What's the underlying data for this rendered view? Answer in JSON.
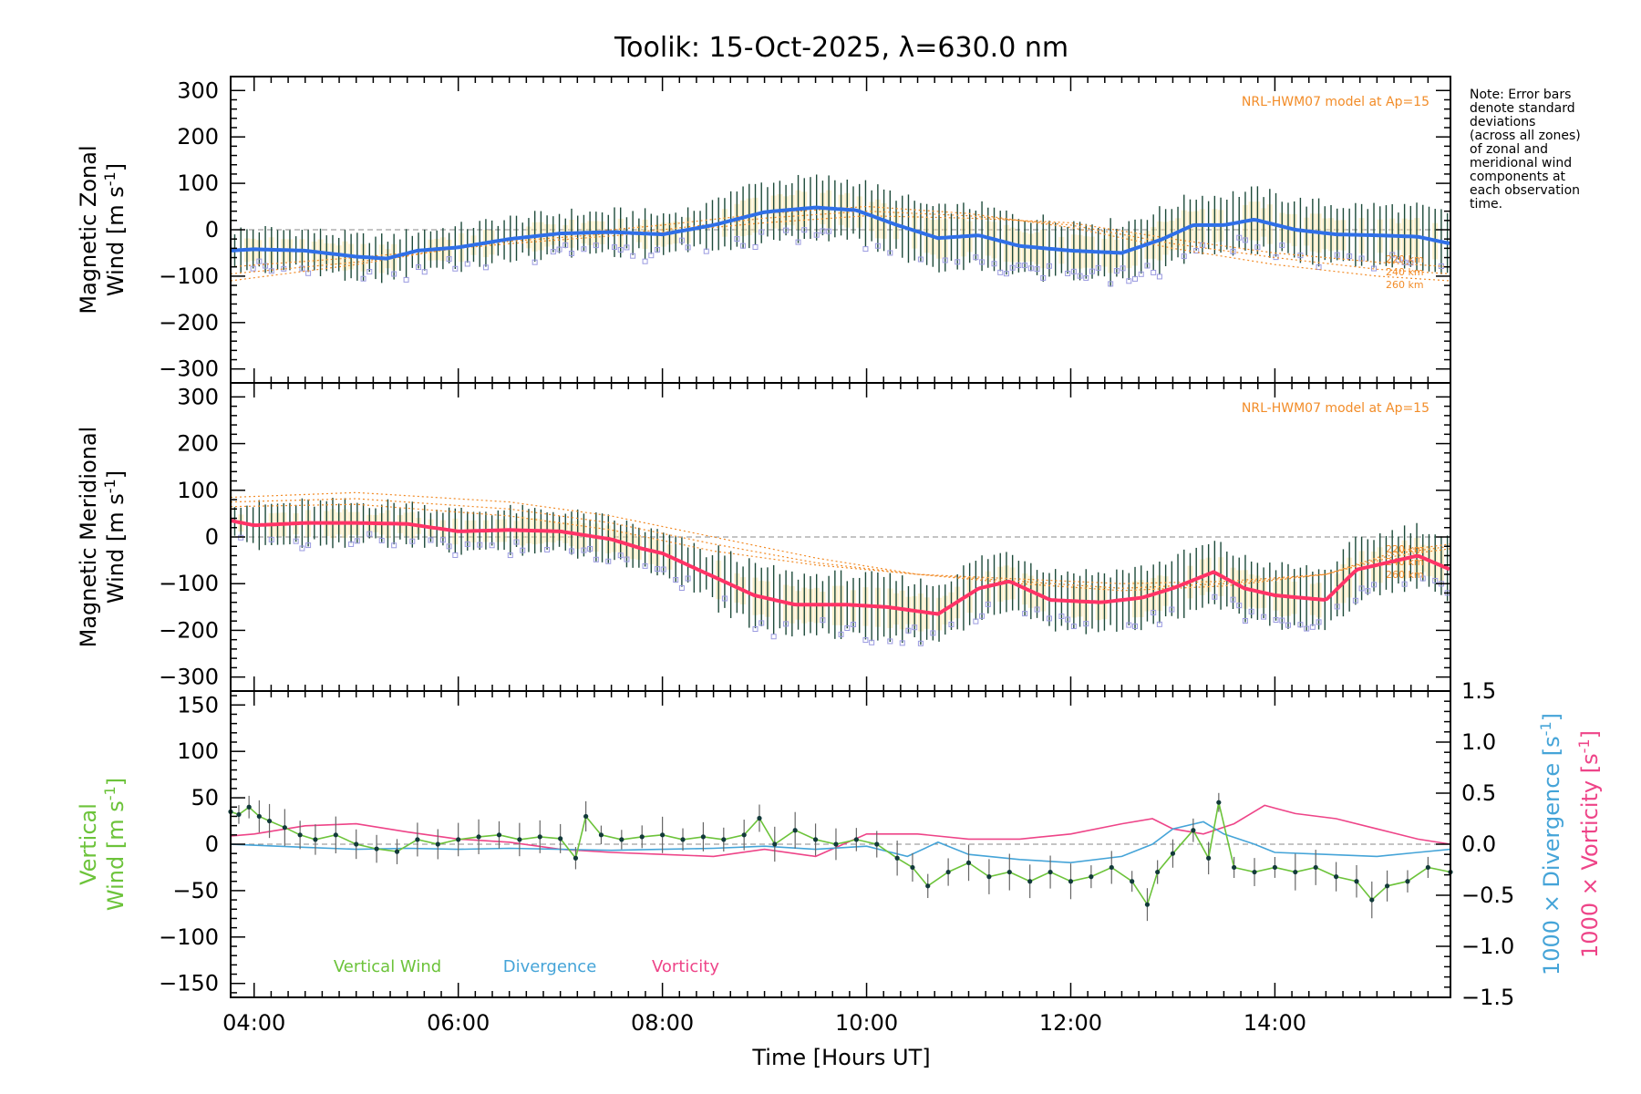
{
  "title": "Toolik: 15-Oct-2025, λ=630.0 nm",
  "note_lines": [
    "Note: Error bars",
    "denote standard",
    "deviations",
    "(across all zones)",
    "of zonal and",
    "meridional wind",
    "components at",
    "each observation",
    "time."
  ],
  "colors": {
    "zonal_line": "#2f6fe8",
    "meridional_line": "#ff3366",
    "model": "#f28c28",
    "vertical": "#6cc33a",
    "divergence": "#45a4d8",
    "vorticity": "#ee4488",
    "error_bar": "#1d4a3a",
    "zone_marker": "#9a9ae0",
    "zone_fill": "#fde5a8"
  },
  "chart_data": [
    {
      "type": "line",
      "name": "zonal",
      "ylabel_line1": "Magnetic Zonal",
      "ylabel_line2": "Wind [m s",
      "ylabel_sup": "-1",
      "ylabel_end": "]",
      "ylim": [
        -330,
        330
      ],
      "yticks": [
        300,
        200,
        100,
        0,
        -100,
        -200,
        -300
      ],
      "model_label": "NRL-HWM07 model at Ap=15",
      "km_labels": [
        "220 km",
        "240 km",
        "260 km"
      ],
      "x": [
        3.77,
        4.0,
        4.5,
        5.0,
        5.3,
        5.6,
        6.0,
        6.5,
        7.0,
        7.5,
        8.0,
        8.5,
        9.0,
        9.5,
        9.9,
        10.3,
        10.7,
        11.1,
        11.5,
        12.0,
        12.5,
        12.9,
        13.2,
        13.5,
        13.8,
        14.2,
        14.6,
        15.0,
        15.4,
        15.72
      ],
      "values": [
        -45,
        -42,
        -45,
        -58,
        -62,
        -45,
        -38,
        -20,
        -8,
        -5,
        -10,
        10,
        38,
        48,
        42,
        10,
        -18,
        -12,
        -35,
        -45,
        -50,
        -20,
        10,
        10,
        22,
        0,
        -10,
        -12,
        -15,
        -30
      ],
      "model_series": [
        {
          "name": "220 km",
          "x": [
            3.77,
            5.0,
            6.5,
            8.0,
            9.0,
            10.0,
            11.0,
            12.0,
            13.0,
            14.0,
            15.0,
            15.72
          ],
          "values": [
            -80,
            -60,
            -30,
            -5,
            15,
            30,
            25,
            15,
            -20,
            -50,
            -70,
            -80
          ]
        },
        {
          "name": "240 km",
          "x": [
            3.77,
            5.0,
            6.5,
            8.0,
            9.0,
            10.0,
            11.0,
            12.0,
            13.0,
            14.0,
            15.0,
            15.72
          ],
          "values": [
            -95,
            -70,
            -25,
            0,
            25,
            40,
            30,
            10,
            -30,
            -60,
            -85,
            -95
          ]
        },
        {
          "name": "260 km",
          "x": [
            3.77,
            5.0,
            6.5,
            8.0,
            9.0,
            10.0,
            11.0,
            12.0,
            13.0,
            14.0,
            15.0,
            15.72
          ],
          "values": [
            -110,
            -75,
            -20,
            10,
            35,
            50,
            35,
            5,
            -40,
            -75,
            -100,
            -110
          ]
        }
      ]
    },
    {
      "type": "line",
      "name": "meridional",
      "ylabel_line1": "Magnetic Meridional",
      "ylabel_line2": "Wind [m s",
      "ylabel_sup": "-1",
      "ylabel_end": "]",
      "ylim": [
        -330,
        330
      ],
      "yticks": [
        300,
        200,
        100,
        0,
        -100,
        -200,
        -300
      ],
      "model_label": "NRL-HWM07 model at Ap=15",
      "km_labels": [
        "220 km",
        "240 km",
        "260 km"
      ],
      "x": [
        3.77,
        4.0,
        4.5,
        5.0,
        5.5,
        6.0,
        6.5,
        7.0,
        7.5,
        7.8,
        8.0,
        8.5,
        8.9,
        9.3,
        9.8,
        10.2,
        10.7,
        11.1,
        11.4,
        11.8,
        12.3,
        12.7,
        13.0,
        13.4,
        13.7,
        14.0,
        14.5,
        14.8,
        15.1,
        15.4,
        15.72
      ],
      "values": [
        35,
        25,
        30,
        30,
        28,
        12,
        15,
        12,
        -5,
        -25,
        -35,
        -85,
        -125,
        -145,
        -145,
        -150,
        -165,
        -110,
        -95,
        -135,
        -140,
        -130,
        -110,
        -75,
        -110,
        -125,
        -135,
        -70,
        -55,
        -40,
        -70
      ],
      "model_series": [
        {
          "name": "220 km",
          "x": [
            3.77,
            5.0,
            6.5,
            7.5,
            8.5,
            9.5,
            10.5,
            11.5,
            12.5,
            13.5,
            14.5,
            15.2,
            15.72
          ],
          "values": [
            65,
            70,
            45,
            15,
            -30,
            -60,
            -80,
            -90,
            -100,
            -95,
            -80,
            -40,
            -25
          ]
        },
        {
          "name": "240 km",
          "x": [
            3.77,
            5.0,
            6.5,
            7.5,
            8.5,
            9.5,
            10.5,
            11.5,
            12.5,
            13.5,
            14.5,
            15.2,
            15.72
          ],
          "values": [
            75,
            82,
            60,
            30,
            -15,
            -55,
            -80,
            -95,
            -110,
            -100,
            -80,
            -35,
            -20
          ]
        },
        {
          "name": "260 km",
          "x": [
            3.77,
            5.0,
            6.5,
            7.5,
            8.5,
            9.5,
            10.5,
            11.5,
            12.5,
            13.5,
            14.5,
            15.2,
            15.72
          ],
          "values": [
            85,
            95,
            75,
            45,
            0,
            -45,
            -80,
            -100,
            -115,
            -105,
            -80,
            -30,
            -15
          ]
        }
      ]
    },
    {
      "type": "line",
      "name": "vertical",
      "xlabel": "Time [Hours UT]",
      "xticks": [
        "04:00",
        "06:00",
        "08:00",
        "10:00",
        "12:00",
        "14:00"
      ],
      "xtick_values": [
        4,
        6,
        8,
        10,
        12,
        14
      ],
      "xlim": [
        3.77,
        15.72
      ],
      "ylabel_line1": "Vertical",
      "ylabel_line2": "Wind [m s",
      "ylabel_sup": "-1",
      "ylabel_end": "]",
      "ylim": [
        -165,
        165
      ],
      "yticks": [
        150,
        100,
        50,
        0,
        -50,
        -100,
        -150
      ],
      "y2lim": [
        -1.5,
        1.5
      ],
      "y2ticks": [
        "1.5",
        "1.0",
        "0.5",
        "0.0",
        "-0.5",
        "-1.0",
        "-1.5"
      ],
      "y2tick_values": [
        1.5,
        1.0,
        0.5,
        0.0,
        -0.5,
        -1.0,
        -1.5
      ],
      "y2label_div": "1000 × Divergence [s",
      "y2label_vor": "1000 × Vorticity [s",
      "y2label_sup": "-1",
      "y2label_end": "]",
      "legend": [
        "Vertical Wind",
        "Divergence",
        "Vorticity"
      ],
      "vertical_wind": {
        "x": [
          3.77,
          3.85,
          3.95,
          4.05,
          4.15,
          4.3,
          4.45,
          4.6,
          4.8,
          5.0,
          5.2,
          5.4,
          5.6,
          5.8,
          6.0,
          6.2,
          6.4,
          6.6,
          6.8,
          7.0,
          7.15,
          7.25,
          7.4,
          7.6,
          7.8,
          8.0,
          8.2,
          8.4,
          8.6,
          8.8,
          8.95,
          9.1,
          9.3,
          9.5,
          9.7,
          9.9,
          10.1,
          10.3,
          10.45,
          10.6,
          10.8,
          11.0,
          11.2,
          11.4,
          11.6,
          11.8,
          12.0,
          12.2,
          12.4,
          12.6,
          12.75,
          12.85,
          13.0,
          13.2,
          13.35,
          13.45,
          13.6,
          13.8,
          14.0,
          14.2,
          14.4,
          14.6,
          14.8,
          14.95,
          15.1,
          15.3,
          15.5,
          15.72
        ],
        "values": [
          35,
          32,
          40,
          30,
          25,
          18,
          10,
          5,
          10,
          0,
          -5,
          -8,
          5,
          0,
          5,
          8,
          10,
          5,
          8,
          6,
          -15,
          30,
          10,
          5,
          8,
          10,
          5,
          8,
          5,
          10,
          28,
          0,
          15,
          5,
          0,
          5,
          0,
          -15,
          -25,
          -45,
          -30,
          -20,
          -35,
          -30,
          -40,
          -30,
          -40,
          -35,
          -25,
          -40,
          -65,
          -30,
          -10,
          15,
          -15,
          45,
          -25,
          -30,
          -25,
          -30,
          -25,
          -35,
          -40,
          -60,
          -45,
          -40,
          -25,
          -30
        ]
      },
      "divergence": {
        "x": [
          3.77,
          4.5,
          5.0,
          5.5,
          6.0,
          6.5,
          7.0,
          7.5,
          8.0,
          8.5,
          9.0,
          9.5,
          10.0,
          10.4,
          10.7,
          11.0,
          11.5,
          12.0,
          12.5,
          12.8,
          13.0,
          13.3,
          13.5,
          13.8,
          14.0,
          14.5,
          15.0,
          15.4,
          15.72
        ],
        "values": [
          0.0,
          -0.03,
          -0.05,
          -0.04,
          -0.05,
          -0.04,
          -0.05,
          -0.06,
          -0.05,
          -0.04,
          -0.02,
          -0.05,
          -0.02,
          -0.12,
          0.02,
          -0.1,
          -0.15,
          -0.18,
          -0.12,
          0.0,
          0.15,
          0.22,
          0.1,
          0.0,
          -0.08,
          -0.1,
          -0.12,
          -0.08,
          -0.05
        ]
      },
      "vorticity": {
        "x": [
          3.77,
          4.0,
          4.5,
          5.0,
          5.5,
          6.0,
          6.5,
          7.0,
          7.5,
          8.0,
          8.5,
          9.0,
          9.5,
          10.0,
          10.5,
          11.0,
          11.5,
          12.0,
          12.5,
          12.8,
          13.0,
          13.3,
          13.6,
          13.9,
          14.2,
          14.6,
          15.0,
          15.4,
          15.72
        ],
        "values": [
          0.08,
          0.1,
          0.18,
          0.2,
          0.12,
          0.05,
          0.02,
          -0.05,
          -0.08,
          -0.1,
          -0.12,
          -0.05,
          -0.12,
          0.1,
          0.1,
          0.05,
          0.05,
          0.1,
          0.2,
          0.25,
          0.15,
          0.1,
          0.2,
          0.38,
          0.3,
          0.25,
          0.15,
          0.05,
          0.0
        ]
      }
    }
  ]
}
